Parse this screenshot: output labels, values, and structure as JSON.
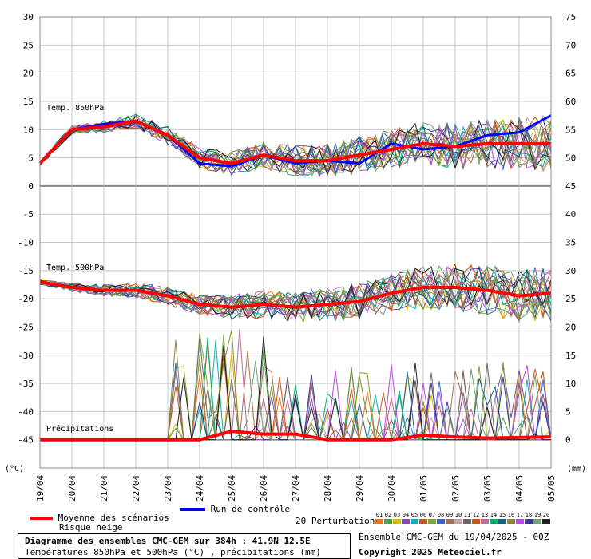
{
  "chart_data": {
    "type": "line",
    "x": [
      "19/04",
      "20/04",
      "21/04",
      "22/04",
      "23/04",
      "24/04",
      "25/04",
      "26/04",
      "27/04",
      "28/04",
      "29/04",
      "30/04",
      "01/05",
      "02/05",
      "03/05",
      "04/05",
      "05/05"
    ],
    "y_left": {
      "unit": "(°C)",
      "ylim": [
        -50,
        30
      ],
      "ticks": [
        30,
        25,
        20,
        15,
        10,
        5,
        0,
        -5,
        -10,
        -15,
        -20,
        -25,
        -30,
        -35,
        -40,
        -45
      ]
    },
    "y_right": {
      "unit": "(mm)",
      "ylim": [
        -5,
        75
      ],
      "ticks": [
        75,
        70,
        65,
        60,
        55,
        50,
        45,
        40,
        35,
        30,
        25,
        20,
        15,
        10,
        5,
        0
      ]
    },
    "grid": true,
    "annotations": [
      "Temp. 850hPa",
      "Temp. 500hPa",
      "Précipitations"
    ],
    "series": [
      {
        "name": "Moyenne des scénarios",
        "color": "#ff0000",
        "t850": [
          4,
          10,
          10.5,
          11.5,
          9,
          5,
          4,
          5.5,
          4.5,
          4.5,
          5.5,
          6.5,
          7.5,
          7,
          7.5,
          7.5,
          7.5
        ],
        "t500": [
          -17,
          -18,
          -18.5,
          -18.5,
          -19.5,
          -21,
          -21.5,
          -21,
          -21.5,
          -21,
          -20.5,
          -19,
          -18,
          -18,
          -18.5,
          -19.5,
          -19
        ],
        "precip": [
          0,
          0,
          0,
          0,
          0,
          0,
          1.5,
          1,
          1,
          0,
          0,
          0,
          0.8,
          0.5,
          0.3,
          0.4,
          0.5
        ]
      },
      {
        "name": "Run de contrôle",
        "color": "#0000ff",
        "t850": [
          4,
          10,
          11,
          11.5,
          9,
          4,
          3.5,
          5.5,
          4,
          4.5,
          4,
          7.5,
          6.5,
          7,
          9,
          9.5,
          12.5
        ]
      }
    ],
    "perturbations": {
      "count": 20,
      "labels": [
        "01",
        "02",
        "03",
        "04",
        "05",
        "06",
        "07",
        "08",
        "09",
        "10",
        "11",
        "12",
        "13",
        "14",
        "15",
        "16",
        "17",
        "18",
        "19",
        "20"
      ]
    }
  },
  "legend": {
    "mean": "Moyenne des scénarios",
    "snow": "Risque neige",
    "control": "Run de contrôle",
    "perturbations": "20 Perturbations"
  },
  "colors": {
    "mean": "#ff0000",
    "control": "#0000ff",
    "perturbations": [
      "#e8731f",
      "#48a048",
      "#d8b800",
      "#8848b8",
      "#00b0b0",
      "#b85c20",
      "#78a830",
      "#3c64c8",
      "#a87050",
      "#c8a0a0",
      "#686868",
      "#d05010",
      "#c06898",
      "#00b070",
      "#186080",
      "#888838",
      "#b848e8",
      "#383898",
      "#70a078",
      "#202020"
    ]
  },
  "footer": {
    "title": "Diagramme des ensembles CMC-GEM sur 384h : 41.9N 12.5E",
    "subtitle": "Températures 850hPa et 500hPa (°C) , précipitations (mm)",
    "run": "Ensemble CMC-GEM du 19/04/2025 - 00Z",
    "copyright": "Copyright 2025 Meteociel.fr"
  }
}
